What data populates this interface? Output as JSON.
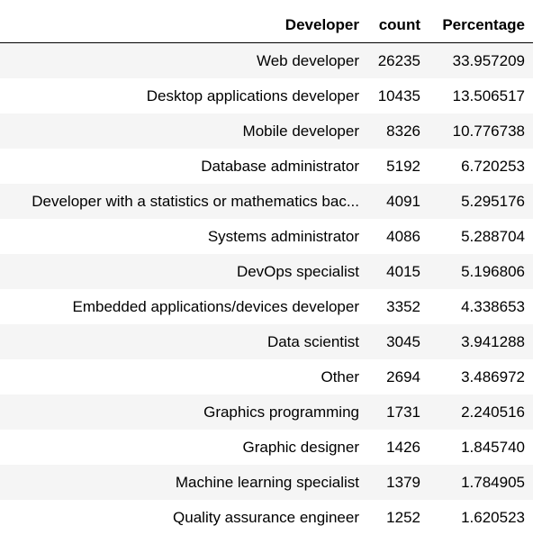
{
  "table": {
    "columns": [
      "Developer",
      "count",
      "Percentage"
    ],
    "rows": [
      [
        "Web developer",
        "26235",
        "33.957209"
      ],
      [
        "Desktop applications developer",
        "10435",
        "13.506517"
      ],
      [
        "Mobile developer",
        "8326",
        "10.776738"
      ],
      [
        "Database administrator",
        "5192",
        "6.720253"
      ],
      [
        "Developer with a statistics or mathematics bac...",
        "4091",
        "5.295176"
      ],
      [
        "Systems administrator",
        "4086",
        "5.288704"
      ],
      [
        "DevOps specialist",
        "4015",
        "5.196806"
      ],
      [
        "Embedded applications/devices developer",
        "3352",
        "4.338653"
      ],
      [
        "Data scientist",
        "3045",
        "3.941288"
      ],
      [
        "Other",
        "2694",
        "3.486972"
      ],
      [
        "Graphics programming",
        "1731",
        "2.240516"
      ],
      [
        "Graphic designer",
        "1426",
        "1.845740"
      ],
      [
        "Machine learning specialist",
        "1379",
        "1.784905"
      ],
      [
        "Quality assurance engineer",
        "1252",
        "1.620523"
      ]
    ]
  }
}
